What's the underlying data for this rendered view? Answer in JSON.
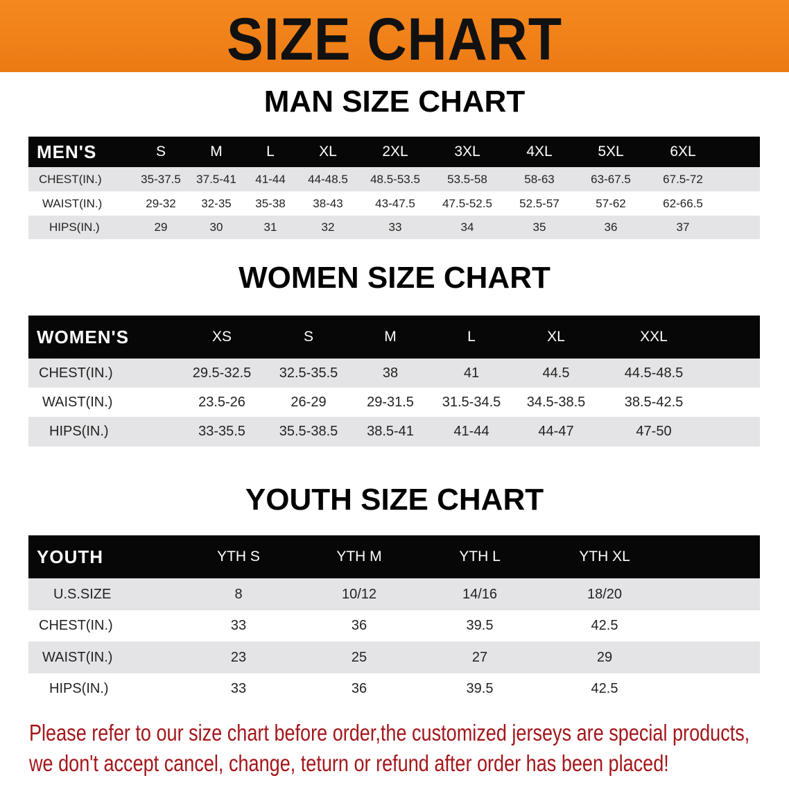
{
  "banner_title": "SIZE CHART",
  "men": {
    "title": "MAN SIZE CHART",
    "header": [
      "MEN'S",
      "S",
      "M",
      "L",
      "XL",
      "2XL",
      "3XL",
      "4XL",
      "5XL",
      "6XL"
    ],
    "rows": [
      [
        "CHEST(IN.)",
        "35-37.5",
        "37.5-41",
        "41-44",
        "44-48.5",
        "48.5-53.5",
        "53.5-58",
        "58-63",
        "63-67.5",
        "67.5-72"
      ],
      [
        "WAIST(IN.)",
        "29-32",
        "32-35",
        "35-38",
        "38-43",
        "43-47.5",
        "47.5-52.5",
        "52.5-57",
        "57-62",
        "62-66.5"
      ],
      [
        "HIPS(IN.)",
        "29",
        "30",
        "31",
        "32",
        "33",
        "34",
        "35",
        "36",
        "37"
      ]
    ]
  },
  "women": {
    "title": "WOMEN SIZE CHART",
    "header": [
      "WOMEN'S",
      "XS",
      "S",
      "M",
      "L",
      "XL",
      "XXL"
    ],
    "rows": [
      [
        "CHEST(IN.)",
        "29.5-32.5",
        "32.5-35.5",
        "38",
        "41",
        "44.5",
        "44.5-48.5"
      ],
      [
        "WAIST(IN.)",
        "23.5-26",
        "26-29",
        "29-31.5",
        "31.5-34.5",
        "34.5-38.5",
        "38.5-42.5"
      ],
      [
        "HIPS(IN.)",
        "33-35.5",
        "35.5-38.5",
        "38.5-41",
        "41-44",
        "44-47",
        "47-50"
      ]
    ]
  },
  "youth": {
    "title": "YOUTH SIZE CHART",
    "header": [
      "YOUTH",
      "YTH S",
      "YTH M",
      "YTH L",
      "YTH XL"
    ],
    "rows": [
      [
        "U.S.SIZE",
        "8",
        "10/12",
        "14/16",
        "18/20"
      ],
      [
        "CHEST(IN.)",
        "33",
        "36",
        "39.5",
        "42.5"
      ],
      [
        "WAIST(IN.)",
        "23",
        "25",
        "27",
        "29"
      ],
      [
        "HIPS(IN.)",
        "33",
        "36",
        "39.5",
        "42.5"
      ]
    ]
  },
  "notice": {
    "line1": "Please refer to our size chart before order,the customized jerseys are special products,",
    "line2": "we don't accept cancel, change, teturn or refund after order has been placed!"
  },
  "colors": {
    "banner": "#ef8019",
    "header_row": "#070707",
    "stripe": "#e4e4e6",
    "notice": "#a3161a"
  }
}
